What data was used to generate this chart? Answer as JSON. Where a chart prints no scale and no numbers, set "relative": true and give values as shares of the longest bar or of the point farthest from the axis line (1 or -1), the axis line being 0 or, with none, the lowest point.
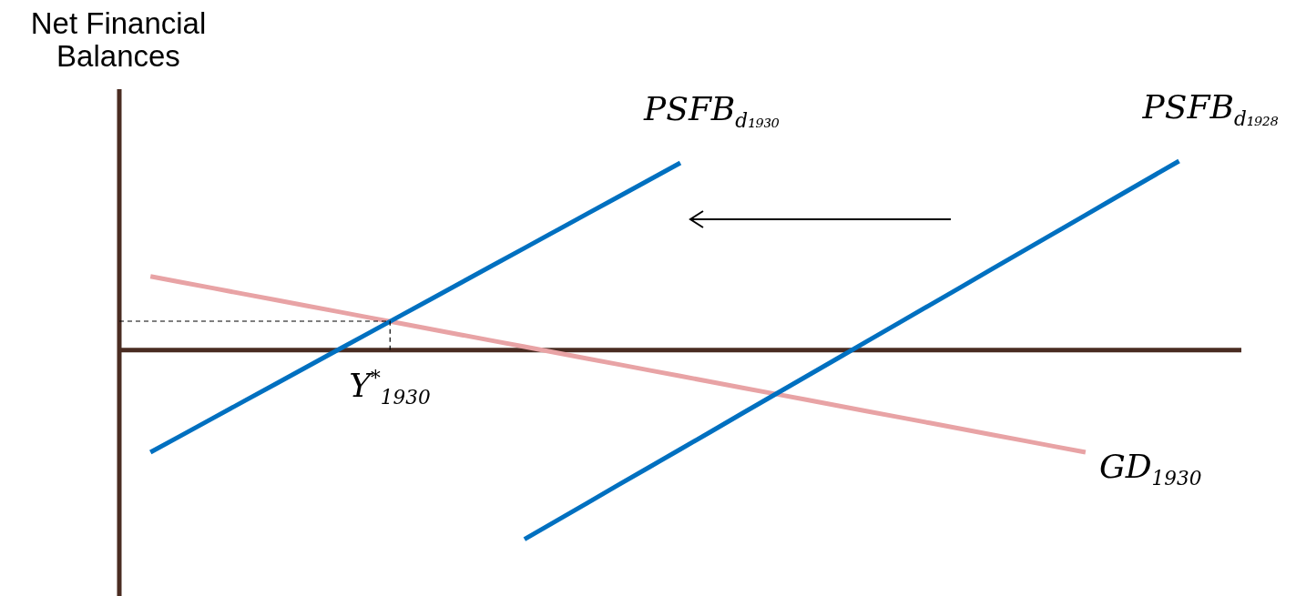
{
  "chart_data": {
    "type": "line",
    "relative": true,
    "ylabel": "Net Financial Balances",
    "categories": [
      null,
      null,
      null,
      null,
      null,
      null,
      null,
      null,
      null,
      null,
      null,
      null,
      null,
      null,
      null,
      null,
      null,
      null,
      null,
      null,
      null,
      null,
      null,
      null,
      null,
      null,
      null,
      null,
      null,
      null,
      null,
      null,
      null,
      null,
      null,
      null,
      null
    ],
    "series": [
      {
        "name": "PSFB$_{d₁₉₃₀}$",
        "color": "#0070c0",
        "values": [
          null,
          -0.54,
          -0.45,
          -0.36,
          -0.27,
          -0.18,
          -0.09,
          0,
          0.09,
          0.18,
          0.27,
          0.36,
          0.45,
          0.54,
          0.63,
          0.72,
          0.81,
          0.9,
          0.99,
          null,
          null,
          null,
          null,
          null,
          null,
          null,
          null,
          null,
          null,
          null,
          null,
          null,
          null,
          null,
          null,
          null,
          null
        ]
      },
      {
        "name": "PSFB$_{d₁₉₂₈}$",
        "color": "#0070c0",
        "values": [
          null,
          null,
          null,
          null,
          null,
          null,
          null,
          null,
          null,
          null,
          null,
          null,
          null,
          -1,
          -0.905,
          -0.81,
          -0.714,
          -0.619,
          -0.524,
          -0.429,
          -0.333,
          -0.238,
          -0.143,
          -0.048,
          0.048,
          0.143,
          0.238,
          0.333,
          0.429,
          0.524,
          0.619,
          0.714,
          0.81,
          0.905,
          1,
          null,
          null
        ]
      },
      {
        "name": "GD$_{1930}$",
        "color": "#e8a3a5",
        "values": [
          null,
          0.39,
          0.359,
          0.328,
          0.297,
          0.266,
          0.235,
          0.204,
          0.173,
          0.142,
          0.111,
          0.08,
          0.049,
          0.018,
          -0.013,
          -0.044,
          -0.075,
          -0.106,
          -0.137,
          -0.168,
          -0.199,
          -0.23,
          -0.261,
          -0.292,
          -0.323,
          -0.354,
          -0.385,
          -0.416,
          -0.447,
          -0.478,
          -0.509,
          -0.54,
          null,
          null,
          null,
          null,
          null
        ]
      }
    ],
    "annotations": [
      "Y$^{*}$$_{1930}$"
    ]
  }
}
